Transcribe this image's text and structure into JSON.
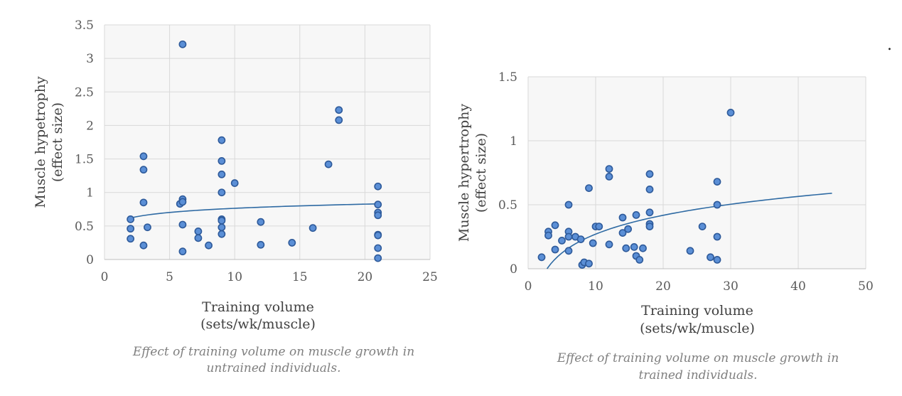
{
  "stray_mark": ".",
  "chart_data": [
    {
      "type": "scatter",
      "xlabel": [
        "Training volume",
        "(sets/wk/muscle)"
      ],
      "ylabel": [
        "Muscle hypetrophy",
        "(effect size)"
      ],
      "caption": [
        "Effect of training volume on muscle growth in",
        "untrained individuals."
      ],
      "xlim": [
        0,
        25
      ],
      "ylim": [
        0,
        3.5
      ],
      "xticks": [
        "0",
        "5",
        "10",
        "15",
        "20",
        "25"
      ],
      "yticks": [
        "0",
        "0.5",
        "1",
        "1.5",
        "2",
        "2.5",
        "3",
        "3.5"
      ],
      "grid": true,
      "trendline": "logarithmic",
      "trend": {
        "x_start": 2,
        "x_end": 21,
        "y_start": 0.62,
        "y_end": 0.83
      },
      "points": [
        [
          2,
          0.6
        ],
        [
          2,
          0.46
        ],
        [
          2,
          0.31
        ],
        [
          3,
          1.54
        ],
        [
          3,
          1.34
        ],
        [
          3,
          0.85
        ],
        [
          3,
          0.21
        ],
        [
          3.3,
          0.48
        ],
        [
          5.8,
          0.83
        ],
        [
          6,
          0.9
        ],
        [
          6,
          0.86
        ],
        [
          6,
          0.52
        ],
        [
          6,
          0.12
        ],
        [
          6,
          3.21
        ],
        [
          7.2,
          0.42
        ],
        [
          7.2,
          0.32
        ],
        [
          8,
          0.21
        ],
        [
          9,
          1.78
        ],
        [
          9,
          1.47
        ],
        [
          9,
          1.27
        ],
        [
          9,
          1.0
        ],
        [
          9,
          0.6
        ],
        [
          9,
          0.58
        ],
        [
          9,
          0.48
        ],
        [
          9,
          0.38
        ],
        [
          10,
          1.14
        ],
        [
          12,
          0.56
        ],
        [
          12,
          0.22
        ],
        [
          14.4,
          0.25
        ],
        [
          16,
          0.47
        ],
        [
          17.2,
          1.42
        ],
        [
          18,
          2.23
        ],
        [
          18,
          2.08
        ],
        [
          21,
          1.09
        ],
        [
          21,
          0.82
        ],
        [
          21,
          0.7
        ],
        [
          21,
          0.66
        ],
        [
          21,
          0.37
        ],
        [
          21,
          0.36
        ],
        [
          21,
          0.17
        ],
        [
          21,
          0.02
        ]
      ]
    },
    {
      "type": "scatter",
      "xlabel": [
        "Training volume",
        "(sets/wk/muscle)"
      ],
      "ylabel": [
        "Muscle hypertrophy",
        "(effect size)"
      ],
      "caption": [
        "Effect of training volume on muscle growth in",
        "trained individuals."
      ],
      "xlim": [
        0,
        50
      ],
      "ylim": [
        0,
        1.5
      ],
      "xticks": [
        "0",
        "10",
        "20",
        "30",
        "40",
        "50"
      ],
      "yticks": [
        "0",
        "0.5",
        "1",
        "1.5"
      ],
      "grid": true,
      "trendline": "logarithmic",
      "trend": {
        "x_start": 2.8,
        "x_end": 45,
        "y_start": 0.0,
        "y_end": 0.59
      },
      "points": [
        [
          2,
          0.09
        ],
        [
          3,
          0.29
        ],
        [
          3,
          0.26
        ],
        [
          4,
          0.34
        ],
        [
          4,
          0.15
        ],
        [
          5,
          0.22
        ],
        [
          6,
          0.5
        ],
        [
          6,
          0.29
        ],
        [
          6,
          0.25
        ],
        [
          6,
          0.14
        ],
        [
          7,
          0.25
        ],
        [
          7.8,
          0.23
        ],
        [
          8,
          0.03
        ],
        [
          8.3,
          0.05
        ],
        [
          9,
          0.63
        ],
        [
          9,
          0.04
        ],
        [
          9.6,
          0.2
        ],
        [
          10,
          0.33
        ],
        [
          10.5,
          0.33
        ],
        [
          12,
          0.78
        ],
        [
          12,
          0.72
        ],
        [
          12,
          0.19
        ],
        [
          14,
          0.4
        ],
        [
          14,
          0.28
        ],
        [
          14.5,
          0.16
        ],
        [
          14.8,
          0.31
        ],
        [
          15.7,
          0.17
        ],
        [
          16,
          0.42
        ],
        [
          16,
          0.1
        ],
        [
          16.5,
          0.07
        ],
        [
          17,
          0.16
        ],
        [
          18,
          0.74
        ],
        [
          18,
          0.62
        ],
        [
          18,
          0.44
        ],
        [
          18,
          0.35
        ],
        [
          18,
          0.33
        ],
        [
          24,
          0.14
        ],
        [
          25.8,
          0.33
        ],
        [
          27,
          0.09
        ],
        [
          28,
          0.68
        ],
        [
          28,
          0.5
        ],
        [
          28,
          0.25
        ],
        [
          28,
          0.07
        ],
        [
          30,
          1.22
        ]
      ]
    }
  ]
}
